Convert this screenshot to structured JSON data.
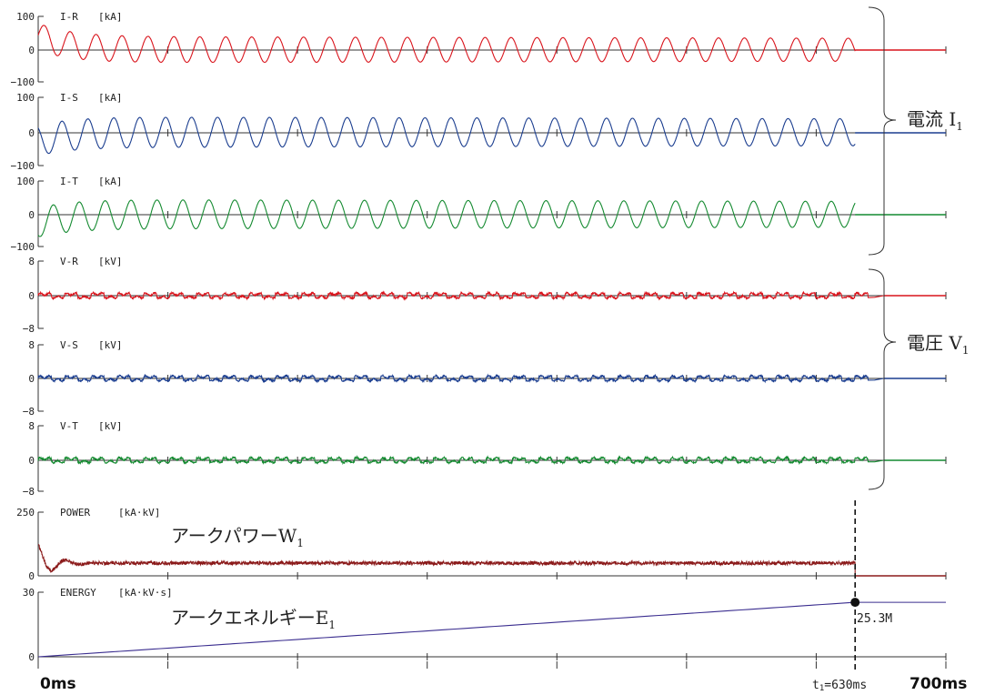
{
  "chart_data": {
    "type": "line",
    "x_start_label": "0ms",
    "x_end_label": "700ms",
    "x_range_ms": [
      0,
      700
    ],
    "panels": [
      {
        "id": "ir",
        "name": "I-R",
        "unit": "[kA]",
        "ymax": 100,
        "ymin": -100,
        "ticks": [
          "100",
          "0",
          "−100"
        ],
        "color": "#d9141c",
        "kind": "sine",
        "amplitude": 40,
        "peak_first": 80,
        "cycles": 31.5,
        "end_ms": 630
      },
      {
        "id": "is",
        "name": "I-S",
        "unit": "[kA]",
        "ymax": 100,
        "ymin": -100,
        "ticks": [
          "100",
          "0",
          "−100"
        ],
        "color": "#1a3d8f",
        "kind": "sine",
        "amplitude": 45,
        "peak_first": 70,
        "cycles": 31.5,
        "end_ms": 630
      },
      {
        "id": "it",
        "name": "I-T",
        "unit": "[kA]",
        "ymax": 100,
        "ymin": -100,
        "ticks": [
          "100",
          "0",
          "−100"
        ],
        "color": "#148a30",
        "kind": "sine",
        "amplitude": 45,
        "peak_first": 70,
        "cycles": 31.5,
        "end_ms": 630
      },
      {
        "id": "vr",
        "name": "V-R",
        "unit": "[kV]",
        "ymax": 8,
        "ymin": -8,
        "ticks": [
          "8",
          "0",
          "−8"
        ],
        "color": "#d9141c",
        "kind": "noise",
        "amplitude": 0.7,
        "cycles": 31.5,
        "end_ms": 640
      },
      {
        "id": "vs",
        "name": "V-S",
        "unit": "[kV]",
        "ymax": 8,
        "ymin": -8,
        "ticks": [
          "8",
          "0",
          "−8"
        ],
        "color": "#1a3d8f",
        "kind": "noise",
        "amplitude": 0.7,
        "cycles": 31.5,
        "end_ms": 640
      },
      {
        "id": "vt",
        "name": "V-T",
        "unit": "[kV]",
        "ymax": 8,
        "ymin": -8,
        "ticks": [
          "8",
          "0",
          "−8"
        ],
        "color": "#148a30",
        "kind": "noise",
        "amplitude": 0.7,
        "cycles": 31.5,
        "end_ms": 640
      },
      {
        "id": "power",
        "name": "POWER",
        "unit": "[kA·kV]",
        "ymax": 250,
        "ymin": 0,
        "ticks": [
          "250",
          "0"
        ],
        "color": "#8b1a1a",
        "kind": "power",
        "level": 50,
        "initial_peak": 120,
        "end_ms": 630
      },
      {
        "id": "energy",
        "name": "ENERGY",
        "unit": "[kA·kV·s]",
        "ymax": 30,
        "ymin": 0,
        "ticks": [
          "30",
          "0"
        ],
        "color": "#3a2d8f",
        "kind": "ramp",
        "final": 25.3,
        "end_ms": 630
      }
    ],
    "annotations": {
      "current_group": {
        "label": "電流 I",
        "sub": "1"
      },
      "voltage_group": {
        "label": "電圧 V",
        "sub": "1"
      },
      "power_label": {
        "label": "アークパワーW",
        "sub": "1"
      },
      "energy_label": {
        "label": "アークエネルギーE",
        "sub": "1"
      },
      "energy_value": "25.3M",
      "marker": {
        "label_prefix": "t",
        "label_sub": "1",
        "label_suffix": "=630ms",
        "x_ms": 630
      }
    }
  }
}
